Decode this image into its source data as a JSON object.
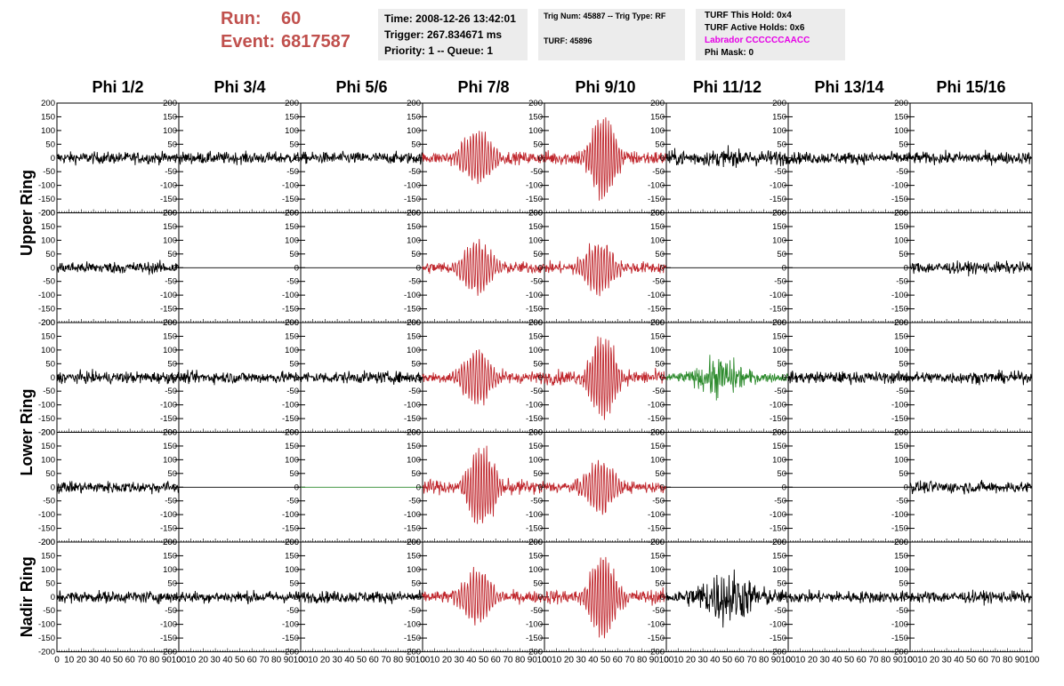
{
  "header": {
    "run_label": "Run:",
    "run_value": "60",
    "event_label": "Event:",
    "event_value": "6817587",
    "time": "Time: 2008-12-26 13:42:01",
    "trigger": "Trigger: 267.834671 ms",
    "priority": "Priority: 1 -- Queue: 1",
    "trig_num": "Trig Num: 45887 -- Trig Type: RF",
    "turf": "TURF: 45896",
    "turf_hold": "TURF This Hold: 0x4",
    "turf_active": "TURF Active Holds: 0x6",
    "labrador": "Labrador CCCCCCAACC",
    "phi_mask": "Phi Mask: 0"
  },
  "colors": {
    "run_text": "#c0504d",
    "trigger_red": "#c0272d",
    "green": "#2e8b2e",
    "black": "#000000",
    "labrador": "#e600e6",
    "info_bg": "#ececec"
  },
  "chart_data": {
    "type": "line",
    "columns": [
      "Phi 1/2",
      "Phi 3/4",
      "Phi 5/6",
      "Phi 7/8",
      "Phi 9/10",
      "Phi 11/12",
      "Phi 13/14",
      "Phi 15/16"
    ],
    "rows": [
      "Upper Ring",
      "Upper Ring",
      "Lower Ring",
      "Lower Ring",
      "Nadir Ring"
    ],
    "row_labels": [
      "Upper Ring",
      "Lower Ring",
      "Nadir Ring"
    ],
    "xlim": [
      0,
      100
    ],
    "ylim": [
      -200,
      200
    ],
    "x_ticks": [
      0,
      10,
      20,
      30,
      40,
      50,
      60,
      70,
      80,
      90,
      100
    ],
    "y_ticks": [
      -200,
      -150,
      -100,
      -50,
      0,
      50,
      100,
      150,
      200
    ],
    "grid": false,
    "panel_style": [
      [
        "noise",
        "noise",
        "noise",
        "red",
        "red_big",
        "noise_mid",
        "noise",
        "noise"
      ],
      [
        "noise",
        "flat",
        "flat",
        "red",
        "red",
        "flat",
        "flat",
        "noise"
      ],
      [
        "noise",
        "noise",
        "noise",
        "red",
        "red_big",
        "green",
        "noise",
        "noise"
      ],
      [
        "noise",
        "flat",
        "flat_green",
        "red_big",
        "red",
        "flat",
        "flat",
        "noise"
      ],
      [
        "noise",
        "noise",
        "noise",
        "red",
        "red_big",
        "noise_big",
        "noise",
        "noise"
      ]
    ]
  }
}
